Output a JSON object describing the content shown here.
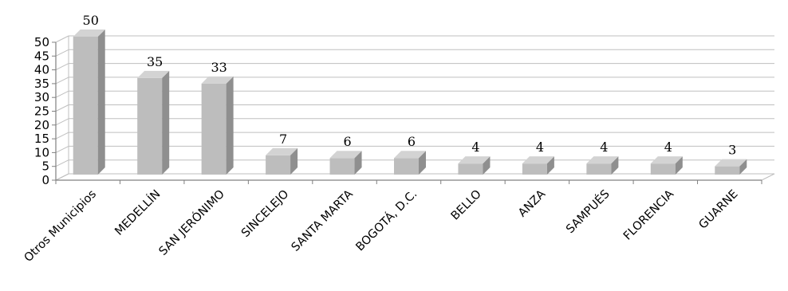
{
  "chart_data": {
    "type": "bar",
    "categories": [
      "Otros Municipios",
      "MEDELLÍN",
      "SAN JERÓNIMO",
      "SINCELEJO",
      "SANTA MARTA",
      "BOGOTÁ, D.C.",
      "BELLO",
      "ANZA",
      "SAMPUÉS",
      "FLORENCIA",
      "GUARNE"
    ],
    "values": [
      50,
      35,
      33,
      7,
      6,
      6,
      4,
      4,
      4,
      4,
      3
    ],
    "data_labels": [
      "50",
      "35",
      "33",
      "7",
      "6",
      "6",
      "4",
      "4",
      "4",
      "4",
      "3"
    ],
    "y_ticks": [
      "0",
      "5",
      "10",
      "15",
      "20",
      "25",
      "30",
      "35",
      "40",
      "45",
      "50"
    ],
    "ylim": [
      0,
      50
    ],
    "grid": true,
    "title": "",
    "xlabel": "",
    "ylabel": "",
    "colors": {
      "bar_front": "#bdbdbd",
      "bar_side": "#8f8f8f",
      "bar_top": "#d3d3d3",
      "grid": "#bfbfbf",
      "axis": "#808080"
    }
  }
}
